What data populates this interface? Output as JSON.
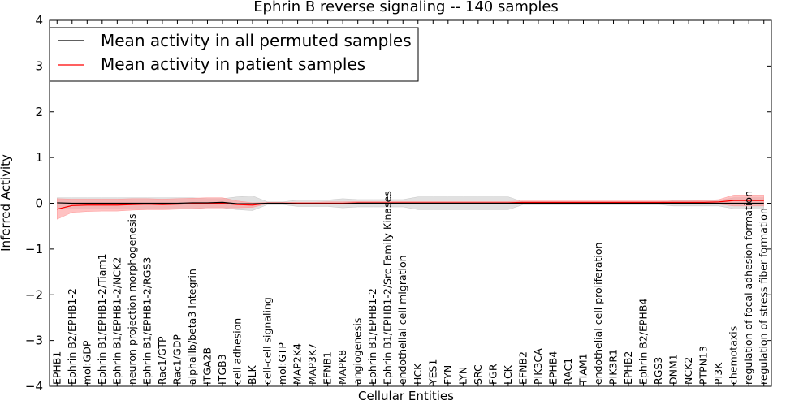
{
  "chart_data": {
    "type": "line",
    "title": "Ephrin B reverse signaling -- 140 samples",
    "xlabel": "Cellular Entities",
    "ylabel": "Inferred Activity",
    "ylim": [
      -4,
      4
    ],
    "yticks": [
      -4,
      -3,
      -2,
      -1,
      0,
      1,
      2,
      3,
      4
    ],
    "ytick_labels": [
      "−4",
      "−3",
      "−2",
      "−1",
      "0",
      "1",
      "2",
      "3",
      "4"
    ],
    "grid": false,
    "legend": {
      "placement": "top-left"
    },
    "categories": [
      "EPHB1",
      "Ephrin B2/EPHB1-2",
      "mol:GDP",
      "Ephrin B1/EPHB1-2/Tiam1",
      "Ephrin B1/EPHB1-2/NCK2",
      "neuron projection morphogenesis",
      "Ephrin B1/EPHB1-2/RGS3",
      "Rac1/GTP",
      "Rac1/GDP",
      "alphaIIb/beta3 Integrin",
      "ITGA2B",
      "ITGB3",
      "cell adhesion",
      "BLK",
      "cell-cell signaling",
      "mol:GTP",
      "MAP2K4",
      "MAP3K7",
      "EFNB1",
      "MAPK8",
      "angiogenesis",
      "Ephrin B1/EPHB1-2",
      "Ephrin B1/EPHB1-2/Src Family Kinases",
      "endothelial cell migration",
      "HCK",
      "YES1",
      "FYN",
      "LYN",
      "SRC",
      "FGR",
      "LCK",
      "EFNB2",
      "PIK3CA",
      "EPHB4",
      "RAC1",
      "TIAM1",
      "endothelial cell proliferation",
      "PIK3R1",
      "EPHB2",
      "Ephrin B2/EPHB4",
      "RGS3",
      "DNM1",
      "NCK2",
      "PTPN13",
      "PI3K",
      "chemotaxis",
      "regulation of focal adhesion formation",
      "regulation of stress fiber formation"
    ],
    "series": [
      {
        "name": "Mean activity in all permuted samples",
        "color": "#000000",
        "band_color": "#c8c8c8",
        "values": [
          0.01,
          0.0,
          0.0,
          0.0,
          0.0,
          0.0,
          0.0,
          0.0,
          0.0,
          0.01,
          0.01,
          0.02,
          -0.01,
          -0.01,
          0.0,
          0.0,
          -0.01,
          -0.01,
          -0.01,
          -0.01,
          0.0,
          0.0,
          0.0,
          0.0,
          0.0,
          0.0,
          0.0,
          0.0,
          0.0,
          0.0,
          0.0,
          0.0,
          0.0,
          0.0,
          0.0,
          0.0,
          0.0,
          0.0,
          0.0,
          0.0,
          0.0,
          0.0,
          0.0,
          0.0,
          0.0,
          0.0,
          0.0,
          0.0
        ],
        "band_lower": [
          -0.12,
          -0.12,
          -0.12,
          -0.12,
          -0.12,
          -0.12,
          -0.12,
          -0.12,
          -0.12,
          -0.12,
          -0.1,
          -0.1,
          -0.14,
          -0.16,
          -0.03,
          -0.03,
          -0.07,
          -0.07,
          -0.07,
          -0.1,
          -0.08,
          -0.08,
          -0.08,
          -0.08,
          -0.14,
          -0.14,
          -0.14,
          -0.14,
          -0.14,
          -0.14,
          -0.14,
          -0.03,
          -0.03,
          -0.03,
          -0.03,
          -0.03,
          -0.03,
          -0.03,
          -0.03,
          -0.03,
          -0.03,
          -0.06,
          -0.06,
          -0.06,
          -0.06,
          -0.12,
          -0.12,
          -0.12
        ],
        "band_upper": [
          0.12,
          0.12,
          0.12,
          0.12,
          0.12,
          0.12,
          0.12,
          0.12,
          0.12,
          0.12,
          0.1,
          0.1,
          0.14,
          0.16,
          0.03,
          0.03,
          0.07,
          0.07,
          0.07,
          0.1,
          0.08,
          0.08,
          0.08,
          0.08,
          0.14,
          0.14,
          0.14,
          0.14,
          0.14,
          0.14,
          0.14,
          0.03,
          0.03,
          0.03,
          0.03,
          0.03,
          0.03,
          0.03,
          0.03,
          0.03,
          0.03,
          0.06,
          0.06,
          0.06,
          0.06,
          0.12,
          0.12,
          0.12
        ]
      },
      {
        "name": "Mean activity in patient samples",
        "color": "#ff0000",
        "band_color": "#ff9999",
        "values": [
          -0.13,
          -0.05,
          -0.04,
          -0.04,
          -0.04,
          -0.03,
          -0.02,
          -0.03,
          -0.02,
          -0.01,
          0.0,
          0.0,
          -0.03,
          -0.04,
          0.0,
          0.0,
          0.0,
          0.0,
          0.0,
          0.0,
          0.01,
          0.01,
          0.01,
          0.01,
          0.01,
          0.01,
          0.01,
          0.01,
          0.01,
          0.01,
          0.01,
          0.02,
          0.02,
          0.02,
          0.02,
          0.02,
          0.02,
          0.02,
          0.02,
          0.02,
          0.02,
          0.02,
          0.02,
          0.02,
          0.03,
          0.06,
          0.06,
          0.06
        ],
        "band_lower": [
          -0.35,
          -0.2,
          -0.18,
          -0.17,
          -0.17,
          -0.15,
          -0.14,
          -0.14,
          -0.13,
          -0.12,
          -0.1,
          -0.1,
          -0.1,
          -0.09,
          -0.01,
          -0.01,
          -0.01,
          -0.01,
          -0.01,
          -0.01,
          0.0,
          0.0,
          0.0,
          0.0,
          0.0,
          0.0,
          0.0,
          0.0,
          0.0,
          0.0,
          0.0,
          0.0,
          0.0,
          0.0,
          0.0,
          0.0,
          0.0,
          0.0,
          0.0,
          0.0,
          0.0,
          0.0,
          0.0,
          0.0,
          -0.02,
          -0.06,
          -0.06,
          -0.06
        ],
        "band_upper": [
          0.1,
          0.09,
          0.09,
          0.09,
          0.09,
          0.1,
          0.1,
          0.09,
          0.1,
          0.11,
          0.12,
          0.12,
          0.05,
          0.01,
          0.02,
          0.02,
          0.02,
          0.02,
          0.03,
          0.03,
          0.04,
          0.04,
          0.04,
          0.04,
          0.04,
          0.04,
          0.04,
          0.04,
          0.04,
          0.04,
          0.04,
          0.05,
          0.05,
          0.05,
          0.05,
          0.05,
          0.05,
          0.05,
          0.05,
          0.05,
          0.05,
          0.05,
          0.05,
          0.06,
          0.08,
          0.18,
          0.18,
          0.18
        ]
      }
    ]
  }
}
